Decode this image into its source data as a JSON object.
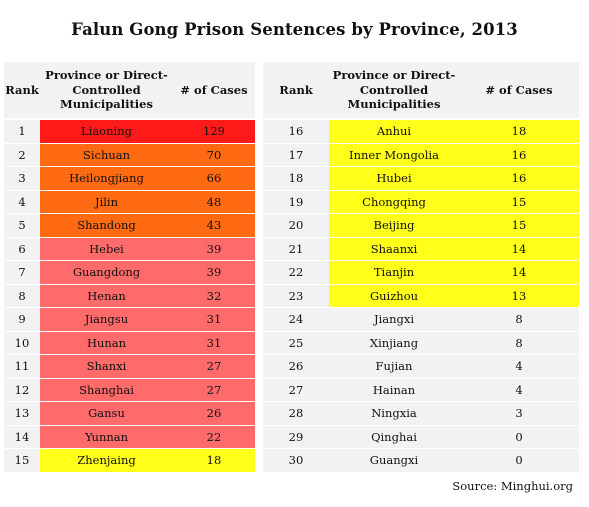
{
  "title": "Falun Gong Prison Sentences by Province, 2013",
  "source": "Source: Minghui.org",
  "colors": {
    "red": "#ff1a1a",
    "orange": "#ff6a13",
    "pink": "#ff6b6b",
    "yellow": "#ffff1a",
    "grey": "#f2f2f2"
  },
  "chart_data": {
    "type": "table",
    "title": "Falun Gong Prison Sentences by Province, 2013",
    "columns": [
      "Rank",
      "Province or Direct-Controlled Municipalities",
      "# of Cases"
    ],
    "rows_left": [
      {
        "rank": "1",
        "province": "Liaoning",
        "cases": "129",
        "color": "red"
      },
      {
        "rank": "2",
        "province": "Sichuan",
        "cases": "70",
        "color": "orange"
      },
      {
        "rank": "3",
        "province": "Heilongjiang",
        "cases": "66",
        "color": "orange"
      },
      {
        "rank": "4",
        "province": "Jilin",
        "cases": "48",
        "color": "orange"
      },
      {
        "rank": "5",
        "province": "Shandong",
        "cases": "43",
        "color": "orange"
      },
      {
        "rank": "6",
        "province": "Hebei",
        "cases": "39",
        "color": "pink"
      },
      {
        "rank": "7",
        "province": "Guangdong",
        "cases": "39",
        "color": "pink"
      },
      {
        "rank": "8",
        "province": "Henan",
        "cases": "32",
        "color": "pink"
      },
      {
        "rank": "9",
        "province": "Jiangsu",
        "cases": "31",
        "color": "pink"
      },
      {
        "rank": "10",
        "province": "Hunan",
        "cases": "31",
        "color": "pink"
      },
      {
        "rank": "11",
        "province": "Shanxi",
        "cases": "27",
        "color": "pink"
      },
      {
        "rank": "12",
        "province": "Shanghai",
        "cases": "27",
        "color": "pink"
      },
      {
        "rank": "13",
        "province": "Gansu",
        "cases": "26",
        "color": "pink"
      },
      {
        "rank": "14",
        "province": "Yunnan",
        "cases": "22",
        "color": "pink"
      },
      {
        "rank": "15",
        "province": "Zhenjaing",
        "cases": "18",
        "color": "yellow"
      }
    ],
    "rows_right": [
      {
        "rank": "16",
        "province": "Anhui",
        "cases": "18",
        "color": "yellow"
      },
      {
        "rank": "17",
        "province": "Inner Mongolia",
        "cases": "16",
        "color": "yellow"
      },
      {
        "rank": "18",
        "province": "Hubei",
        "cases": "16",
        "color": "yellow"
      },
      {
        "rank": "19",
        "province": "Chongqing",
        "cases": "15",
        "color": "yellow"
      },
      {
        "rank": "20",
        "province": "Beijing",
        "cases": "15",
        "color": "yellow"
      },
      {
        "rank": "21",
        "province": "Shaanxi",
        "cases": "14",
        "color": "yellow"
      },
      {
        "rank": "22",
        "province": "Tianjin",
        "cases": "14",
        "color": "yellow"
      },
      {
        "rank": "23",
        "province": "Guizhou",
        "cases": "13",
        "color": "yellow"
      },
      {
        "rank": "24",
        "province": "Jiangxi",
        "cases": "8",
        "color": "grey"
      },
      {
        "rank": "25",
        "province": "Xinjiang",
        "cases": "8",
        "color": "grey"
      },
      {
        "rank": "26",
        "province": "Fujian",
        "cases": "4",
        "color": "grey"
      },
      {
        "rank": "27",
        "province": "Hainan",
        "cases": "4",
        "color": "grey"
      },
      {
        "rank": "28",
        "province": "Ningxia",
        "cases": "3",
        "color": "grey"
      },
      {
        "rank": "29",
        "province": "Qinghai",
        "cases": "0",
        "color": "grey"
      },
      {
        "rank": "30",
        "province": "Guangxi",
        "cases": "0",
        "color": "grey"
      }
    ]
  }
}
